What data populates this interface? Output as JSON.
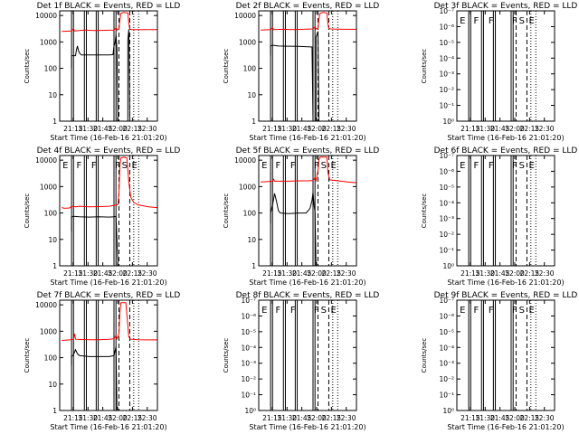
{
  "chart_data": [
    {
      "id": "det1f",
      "title": "Det 1f  BLACK = Events, RED = LLD",
      "type": "line",
      "ylabel": "Counts/sec",
      "xlabel": "Start Time (16-Feb-16 21:01:20)",
      "x_ticks": [
        "21:15",
        "21:30",
        "21:45",
        "22:00",
        "22:15",
        "22:30"
      ],
      "x_range": [
        "21:01:20",
        "22:40"
      ],
      "y_scale": "log",
      "y_ticks": [
        "1",
        "10",
        "100",
        "1000",
        "10000"
      ],
      "ylim": [
        1,
        15000
      ],
      "flags": [],
      "series": [
        {
          "color": "#ff0000",
          "points": [
            [
              2,
              2500
            ],
            [
              12,
              2600
            ],
            [
              14,
              3200
            ],
            [
              15,
              2600
            ],
            [
              20,
              2700
            ],
            [
              25,
              2800
            ],
            [
              35,
              2700
            ],
            [
              45,
              2750
            ],
            [
              55,
              2800
            ],
            [
              57,
              3500
            ],
            [
              58,
              2800
            ],
            [
              60,
              3000
            ],
            [
              61,
              6500
            ],
            [
              62,
              12000
            ],
            [
              65,
              13000
            ],
            [
              69,
              12500
            ],
            [
              70,
              5000
            ],
            [
              71,
              3000
            ],
            [
              73,
              2900
            ],
            [
              85,
              2900
            ],
            [
              99,
              2900
            ]
          ]
        },
        {
          "color": "#000000",
          "points": [
            [
              12,
              100
            ],
            [
              12,
              300
            ],
            [
              16,
              300
            ],
            [
              17,
              500
            ],
            [
              18,
              700
            ],
            [
              19,
              480
            ],
            [
              20,
              380
            ],
            [
              22,
              320
            ],
            [
              25,
              320
            ],
            [
              35,
              320
            ],
            [
              45,
              320
            ],
            [
              50,
              320
            ],
            [
              54,
              330
            ],
            [
              55,
              700
            ],
            [
              56,
              900
            ],
            [
              57,
              1800
            ],
            [
              58,
              500
            ],
            [
              59,
              1
            ],
            [
              69,
              1
            ],
            [
              69,
              1200
            ],
            [
              70,
              3000
            ],
            [
              71,
              1
            ]
          ]
        }
      ]
    },
    {
      "id": "det2f",
      "title": "Det 2f  BLACK = Events, RED = LLD",
      "type": "line",
      "ylabel": "Counts/sec",
      "xlabel": "Start Time (16-Feb-16 21:01:20)",
      "x_ticks": [
        "21:15",
        "21:30",
        "21:45",
        "22:00",
        "22:15",
        "22:30"
      ],
      "x_range": [
        "21:01:20",
        "22:40"
      ],
      "y_scale": "log",
      "y_ticks": [
        "1",
        "10",
        "100",
        "1000",
        "10000"
      ],
      "ylim": [
        1,
        15000
      ],
      "flags": [],
      "series": [
        {
          "color": "#ff0000",
          "points": [
            [
              2,
              2800
            ],
            [
              12,
              2900
            ],
            [
              14,
              3500
            ],
            [
              15,
              2900
            ],
            [
              25,
              3000
            ],
            [
              35,
              2900
            ],
            [
              45,
              3000
            ],
            [
              55,
              3100
            ],
            [
              57,
              3800
            ],
            [
              58,
              3100
            ],
            [
              60,
              3200
            ],
            [
              61,
              7000
            ],
            [
              62,
              12000
            ],
            [
              65,
              13000
            ],
            [
              69,
              12500
            ],
            [
              70,
              5000
            ],
            [
              71,
              3200
            ],
            [
              73,
              3100
            ],
            [
              85,
              3000
            ],
            [
              99,
              3000
            ]
          ]
        },
        {
          "color": "#000000",
          "points": [
            [
              12,
              300
            ],
            [
              12,
              700
            ],
            [
              14,
              750
            ],
            [
              20,
              700
            ],
            [
              30,
              690
            ],
            [
              40,
              680
            ],
            [
              50,
              650
            ],
            [
              54,
              640
            ],
            [
              55,
              1
            ],
            [
              58,
              1
            ],
            [
              58,
              1500
            ],
            [
              60,
              2500
            ],
            [
              61,
              1
            ]
          ]
        }
      ]
    },
    {
      "id": "det3f",
      "title": "Det 3f  BLACK = Events, RED = LLD",
      "type": "line",
      "ylabel": "Counts/sec",
      "xlabel": "Start Time (16-Feb-16 21:01:20)",
      "x_ticks": [
        "21:15",
        "21:30",
        "21:45",
        "22:00",
        "22:15",
        "22:30"
      ],
      "x_range": [
        "21:01:20",
        "22:40"
      ],
      "y_scale": "log",
      "y_ticks": [
        "10⁰",
        "10⁻¹",
        "10⁻²",
        "10⁻³",
        "10⁻⁴",
        "10⁻⁵",
        "10⁻⁶",
        "10⁻⁷"
      ],
      "ylim": [
        1e-07,
        1
      ],
      "flags": [
        "E",
        "F",
        "F",
        "F",
        "S",
        "E"
      ],
      "series": []
    },
    {
      "id": "det4f",
      "title": "Det 4f  BLACK = Events, RED = LLD",
      "type": "line",
      "ylabel": "Counts/sec",
      "xlabel": "Start Time (16-Feb-16 21:01:20)",
      "x_ticks": [
        "21:15",
        "21:30",
        "21:45",
        "22:00",
        "22:15",
        "22:30"
      ],
      "x_range": [
        "21:01:20",
        "22:40"
      ],
      "y_scale": "log",
      "y_ticks": [
        "1",
        "10",
        "100",
        "1000",
        "10000"
      ],
      "ylim": [
        1,
        15000
      ],
      "flags": [
        "E",
        "F",
        "F",
        "F",
        "S",
        "E"
      ],
      "series": [
        {
          "color": "#ff0000",
          "points": [
            [
              2,
              160
            ],
            [
              5,
              150
            ],
            [
              10,
              155
            ],
            [
              12,
              180
            ],
            [
              16,
              170
            ],
            [
              20,
              180
            ],
            [
              30,
              170
            ],
            [
              40,
              175
            ],
            [
              50,
              180
            ],
            [
              57,
              200
            ],
            [
              59,
              210
            ],
            [
              60,
              600
            ],
            [
              61,
              6000
            ],
            [
              62,
              12000
            ],
            [
              65,
              13000
            ],
            [
              68,
              12000
            ],
            [
              70,
              1500
            ],
            [
              72,
              400
            ],
            [
              75,
              250
            ],
            [
              80,
              200
            ],
            [
              90,
              170
            ],
            [
              99,
              160
            ]
          ]
        },
        {
          "color": "#000000",
          "points": [
            [
              12,
              20
            ],
            [
              12,
              70
            ],
            [
              14,
              75
            ],
            [
              20,
              72
            ],
            [
              30,
              70
            ],
            [
              40,
              72
            ],
            [
              50,
              70
            ],
            [
              55,
              72
            ],
            [
              57,
              75
            ],
            [
              59,
              1
            ]
          ]
        }
      ]
    },
    {
      "id": "det5f",
      "title": "Det 5f  BLACK = Events, RED = LLD",
      "type": "line",
      "ylabel": "Counts/sec",
      "xlabel": "Start Time (16-Feb-16 21:01:20)",
      "x_ticks": [
        "21:15",
        "21:30",
        "21:45",
        "22:00",
        "22:15",
        "22:30"
      ],
      "x_range": [
        "21:01:20",
        "22:40"
      ],
      "y_scale": "log",
      "y_ticks": [
        "1",
        "10",
        "100",
        "1000",
        "10000"
      ],
      "ylim": [
        1,
        15000
      ],
      "flags": [
        "E",
        "F",
        "F",
        "F",
        "S",
        "E"
      ],
      "series": [
        {
          "color": "#ff0000",
          "points": [
            [
              2,
              1500
            ],
            [
              10,
              1550
            ],
            [
              14,
              1600
            ],
            [
              15,
              1900
            ],
            [
              16,
              1600
            ],
            [
              20,
              1600
            ],
            [
              30,
              1600
            ],
            [
              40,
              1650
            ],
            [
              50,
              1650
            ],
            [
              55,
              1700
            ],
            [
              57,
              2200
            ],
            [
              58,
              1700
            ],
            [
              60,
              4000
            ],
            [
              61,
              10000
            ],
            [
              62,
              13000
            ],
            [
              69,
              13000
            ],
            [
              70,
              3500
            ],
            [
              72,
              1800
            ],
            [
              80,
              1650
            ],
            [
              90,
              1500
            ],
            [
              99,
              1400
            ]
          ]
        },
        {
          "color": "#000000",
          "points": [
            [
              12,
              40
            ],
            [
              12,
              100
            ],
            [
              14,
              200
            ],
            [
              16,
              550
            ],
            [
              18,
              280
            ],
            [
              20,
              120
            ],
            [
              22,
              100
            ],
            [
              30,
              95
            ],
            [
              40,
              100
            ],
            [
              48,
              100
            ],
            [
              52,
              150
            ],
            [
              54,
              300
            ],
            [
              55,
              600
            ],
            [
              56,
              200
            ],
            [
              57,
              110
            ],
            [
              58,
              1
            ]
          ]
        }
      ]
    },
    {
      "id": "det6f",
      "title": "Det 6f  BLACK = Events, RED = LLD",
      "type": "line",
      "ylabel": "Counts/sec",
      "xlabel": "Start Time (16-Feb-16 21:01:20)",
      "x_ticks": [
        "21:15",
        "21:30",
        "21:45",
        "22:00",
        "22:15",
        "22:30"
      ],
      "x_range": [
        "21:01:20",
        "22:40"
      ],
      "y_scale": "log",
      "y_ticks": [
        "10⁰",
        "10⁻¹",
        "10⁻²",
        "10⁻³",
        "10⁻⁴",
        "10⁻⁵",
        "10⁻⁶",
        "10⁻⁷"
      ],
      "ylim": [
        1e-07,
        1
      ],
      "flags": [
        "E",
        "F",
        "F",
        "F",
        "S",
        "E"
      ],
      "series": []
    },
    {
      "id": "det7f",
      "title": "Det 7f  BLACK = Events, RED = LLD",
      "type": "line",
      "ylabel": "Counts/sec",
      "xlabel": "Start Time (16-Feb-16 21:01:20)",
      "x_ticks": [
        "21:15",
        "21:30",
        "21:45",
        "22:00",
        "22:15",
        "22:30"
      ],
      "x_range": [
        "21:01:20",
        "22:40"
      ],
      "y_scale": "log",
      "y_ticks": [
        "1",
        "10",
        "100",
        "1000",
        "10000"
      ],
      "ylim": [
        1,
        15000
      ],
      "flags": [],
      "series": [
        {
          "color": "#ff0000",
          "points": [
            [
              2,
              450
            ],
            [
              10,
              470
            ],
            [
              14,
              500
            ],
            [
              15,
              800
            ],
            [
              16,
              500
            ],
            [
              20,
              490
            ],
            [
              30,
              480
            ],
            [
              40,
              480
            ],
            [
              50,
              500
            ],
            [
              55,
              520
            ],
            [
              57,
              700
            ],
            [
              58,
              520
            ],
            [
              60,
              800
            ],
            [
              61,
              5000
            ],
            [
              62,
              12000
            ],
            [
              67,
              12000
            ],
            [
              70,
              600
            ],
            [
              72,
              500
            ],
            [
              80,
              480
            ],
            [
              90,
              470
            ],
            [
              99,
              470
            ]
          ]
        },
        {
          "color": "#000000",
          "points": [
            [
              12,
              50
            ],
            [
              12,
              110
            ],
            [
              14,
              130
            ],
            [
              16,
              200
            ],
            [
              18,
              140
            ],
            [
              20,
              120
            ],
            [
              30,
              110
            ],
            [
              40,
              110
            ],
            [
              50,
              110
            ],
            [
              55,
              120
            ],
            [
              57,
              250
            ],
            [
              58,
              1
            ]
          ]
        }
      ]
    },
    {
      "id": "det8f",
      "title": "Det 8f  BLACK = Events, RED = LLD",
      "type": "line",
      "ylabel": "Counts/sec",
      "xlabel": "Start Time (16-Feb-16 21:01:20)",
      "x_ticks": [
        "21:15",
        "21:30",
        "21:45",
        "22:00",
        "22:15",
        "22:30"
      ],
      "x_range": [
        "21:01:20",
        "22:40"
      ],
      "y_scale": "log",
      "y_ticks": [
        "10⁰",
        "10⁻¹",
        "10⁻²",
        "10⁻³",
        "10⁻⁴",
        "10⁻⁵",
        "10⁻⁶",
        "10⁻⁷"
      ],
      "ylim": [
        1e-07,
        1
      ],
      "flags": [
        "E",
        "F",
        "F",
        "F",
        "S",
        "E"
      ],
      "series": []
    },
    {
      "id": "det9f",
      "title": "Det 9f  BLACK = Events, RED = LLD",
      "type": "line",
      "ylabel": "Counts/sec",
      "xlabel": "Start Time (16-Feb-16 21:01:20)",
      "x_ticks": [
        "21:15",
        "21:30",
        "21:45",
        "22:00",
        "22:15",
        "22:30"
      ],
      "x_range": [
        "21:01:20",
        "22:40"
      ],
      "y_scale": "log",
      "y_ticks": [
        "10⁰",
        "10⁻¹",
        "10⁻²",
        "10⁻³",
        "10⁻⁴",
        "10⁻⁵",
        "10⁻⁶",
        "10⁻⁷"
      ],
      "ylim": [
        1e-07,
        1
      ],
      "flags": [
        "E",
        "F",
        "F",
        "F",
        "S",
        "E"
      ],
      "series": []
    }
  ]
}
